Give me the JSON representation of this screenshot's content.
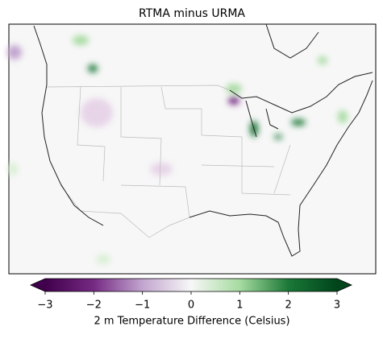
{
  "title": "RTMA minus URMA",
  "colorbar": {
    "label": "2 m Temperature Difference (Celsius)",
    "lim": [
      -3,
      3
    ],
    "colors": [
      "#40004b",
      "#762a83",
      "#c2a5cf",
      "#f7f7f7",
      "#a6dba0",
      "#1b7837",
      "#00441b"
    ],
    "ticks": [
      {
        "value": -3,
        "label": "−3"
      },
      {
        "value": -2,
        "label": "−2"
      },
      {
        "value": -1,
        "label": "−1"
      },
      0,
      1,
      2,
      3
    ]
  }
}
